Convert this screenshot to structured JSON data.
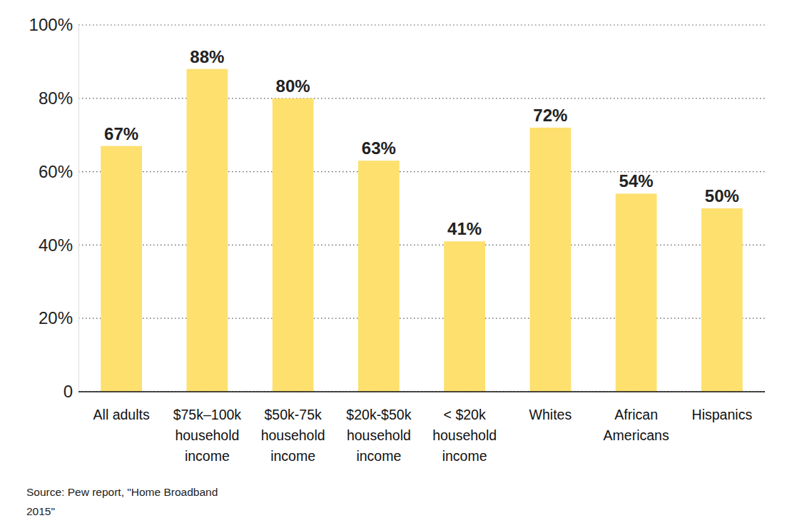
{
  "chart_data": {
    "type": "bar",
    "categories": [
      "All adults",
      "$75k–100k\nhousehold\nincome",
      "$50k-75k\nhousehold\nincome",
      "$20k-$50k\nhousehold\nincome",
      "< $20k\nhousehold\nincome",
      "Whites",
      "African\nAmericans",
      "Hispanics"
    ],
    "values": [
      67,
      88,
      80,
      63,
      41,
      72,
      54,
      50
    ],
    "value_labels": [
      "67%",
      "88%",
      "80%",
      "63%",
      "41%",
      "72%",
      "54%",
      "50%"
    ],
    "color": "#fde06e",
    "ylim": [
      0,
      100
    ],
    "yticks": [
      0,
      {
        "value": 20,
        "label": "20%"
      },
      {
        "value": 40,
        "label": "40%"
      },
      {
        "value": 60,
        "label": "60%"
      },
      {
        "value": 80,
        "label": "80%"
      },
      {
        "value": 100,
        "label": "100%"
      }
    ],
    "grid": true,
    "data_labels": true,
    "source": "Source: Pew report, \"Home Broadband\n2015\""
  }
}
